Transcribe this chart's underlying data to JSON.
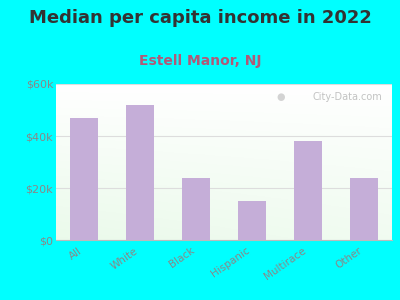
{
  "title": "Median per capita income in 2022",
  "subtitle": "Estell Manor, NJ",
  "categories": [
    "All",
    "White",
    "Black",
    "Hispanic",
    "Multirace",
    "Other"
  ],
  "values": [
    47000,
    52000,
    24000,
    15000,
    38000,
    24000
  ],
  "bar_color": "#c5aed8",
  "title_fontsize": 13,
  "subtitle_fontsize": 10,
  "subtitle_color": "#b05a78",
  "tick_label_color": "#888888",
  "ylim": [
    0,
    60000
  ],
  "yticks": [
    0,
    20000,
    40000,
    60000
  ],
  "ytick_labels": [
    "$0",
    "$20k",
    "$40k",
    "$60k"
  ],
  "bg_color": "#00ffff",
  "watermark": "City-Data.com"
}
